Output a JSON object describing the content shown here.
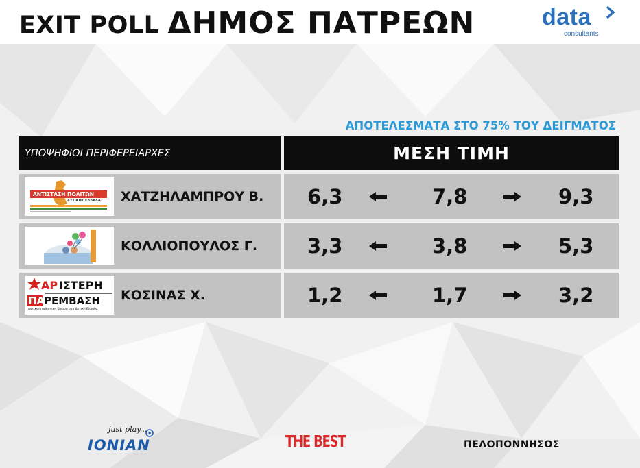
{
  "header": {
    "title_left": "EXIT POLL",
    "title_right": "ΔΗΜΟΣ ΠΑΤΡΕΩΝ",
    "brand_logo": {
      "word": "data",
      "sub": "consultants",
      "icon": "play-arrow-icon"
    }
  },
  "results_caption": "ΑΠΟΤΕΛΕΣΜΑΤΑ ΣΤΟ 75% ΤΟΥ ΔΕΙΓΜΑΤΟΣ",
  "table": {
    "col_candidates": "ΥΠΟΨΗΦΙΟΙ ΠΕΡΙΦΕΡΕΙΑΡΧΕΣ",
    "col_values": "ΜΕΣΗ ΤΙΜΗ",
    "rows": [
      {
        "name": "ΧΑΤΖΗΛΑΜΠΡΟΥ Β.",
        "logo": {
          "kind": "antistasi-politon-logo",
          "line1": "ΑΝΤΙΣΤΑΣΗ ΠΟΛΙΤΩΝ",
          "line2": "ΔΥΤΙΚΗΣ ΕΛΛΑΔΑΣ"
        },
        "low": "6,3",
        "mid": "7,8",
        "high": "9,3"
      },
      {
        "name": "ΚΟΛΛΙΟΠΟΥΛΟΣ Γ.",
        "logo": {
          "kind": "balloons-illustration-logo"
        },
        "low": "3,3",
        "mid": "3,8",
        "high": "5,3"
      },
      {
        "name": "ΚΟΣΙΝΑΣ Χ.",
        "logo": {
          "kind": "aristeri-paremvasi-logo",
          "line1a": "ΑΡ",
          "line1b": "ΙΣΤΕΡΗ",
          "line2a": "ΠΑ",
          "line2b": "ΡΕΜΒΑΣΗ",
          "tagline": "Αντικαπιταλιστική Κίνηση στη Δυτική Ελλάδα"
        },
        "low": "1,2",
        "mid": "1,7",
        "high": "3,2"
      }
    ]
  },
  "footer": {
    "ionian_tag": "just play...",
    "ionian_brand": "IONIAN",
    "thebest": "THE BEST",
    "pelop": "ΠΕΛΟΠΟΝΝΗΣΟΣ"
  },
  "colors": {
    "caption_blue": "#2c9ad8",
    "brand_blue": "#2a6fb8",
    "header_bar": "#0d0d0d",
    "row_bg": "#c2c2c2",
    "thebest_red": "#d82a2a"
  }
}
